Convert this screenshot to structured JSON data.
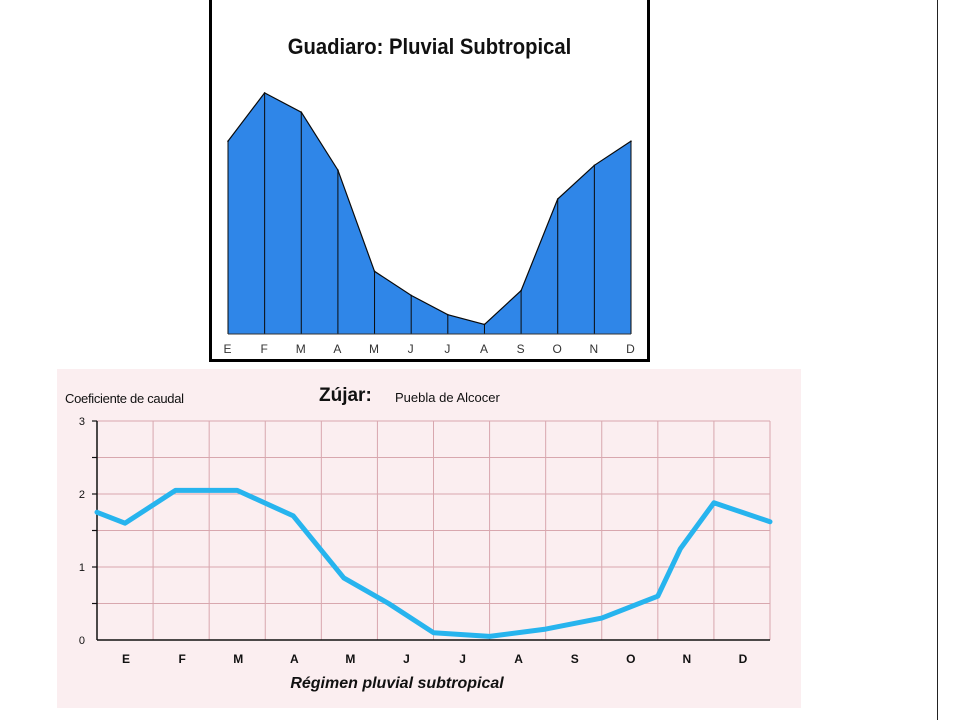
{
  "chart_data": [
    {
      "type": "area",
      "title": "Guadiaro: Pluvial Subtropical",
      "categories": [
        "E",
        "F",
        "M",
        "A",
        "M",
        "J",
        "J",
        "A",
        "S",
        "O",
        "N",
        "D"
      ],
      "values": [
        2.0,
        2.5,
        2.3,
        1.7,
        0.65,
        0.4,
        0.2,
        0.1,
        0.45,
        1.4,
        1.75,
        2.0
      ],
      "ylim": [
        0,
        2.8
      ],
      "grid": false,
      "colors": {
        "fill": "#2f86e8",
        "stroke": "#0a0a0a"
      }
    },
    {
      "type": "line",
      "title": "Zújar:",
      "subtitle": "Puebla de Alcocer",
      "ylabel": "Coeficiente de caudal",
      "xlabel": "Régimen pluvial subtropical",
      "categories": [
        "E",
        "F",
        "M",
        "A",
        "M",
        "J",
        "J",
        "A",
        "S",
        "O",
        "N",
        "D"
      ],
      "y_ticks": [
        "0",
        "1",
        "2",
        "3"
      ],
      "ylim": [
        0,
        3
      ],
      "grid": true,
      "series": [
        {
          "x": [
            0,
            0.5,
            1.4,
            2.5,
            3.5,
            4.4,
            5.2,
            6.0,
            7.0,
            8.0,
            9.0,
            10.0,
            10.4,
            11.0,
            11.5,
            12.0
          ],
          "y": [
            1.75,
            1.6,
            2.05,
            2.05,
            1.7,
            0.85,
            0.5,
            0.1,
            0.05,
            0.15,
            0.3,
            0.6,
            1.25,
            1.88,
            1.75,
            1.62
          ]
        }
      ],
      "colors": {
        "line": "#27b4ee",
        "grid": "#d8a7ae",
        "background": "#fbeef0"
      }
    }
  ]
}
